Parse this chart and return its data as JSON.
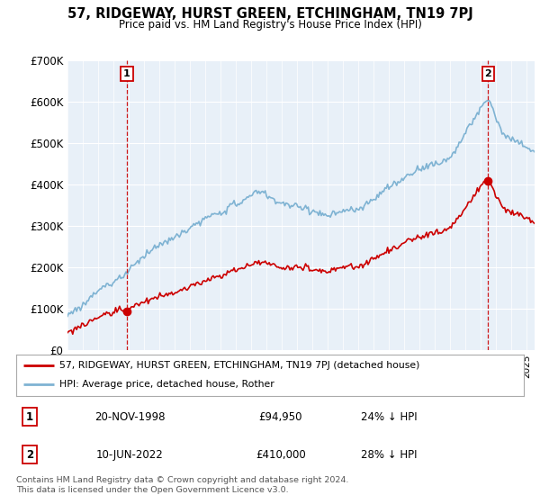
{
  "title": "57, RIDGEWAY, HURST GREEN, ETCHINGHAM, TN19 7PJ",
  "subtitle": "Price paid vs. HM Land Registry's House Price Index (HPI)",
  "sale1_date": "20-NOV-1998",
  "sale1_price": 94950,
  "sale1_label": "24% ↓ HPI",
  "sale2_date": "10-JUN-2022",
  "sale2_price": 410000,
  "sale2_label": "28% ↓ HPI",
  "legend_line1": "57, RIDGEWAY, HURST GREEN, ETCHINGHAM, TN19 7PJ (detached house)",
  "legend_line2": "HPI: Average price, detached house, Rother",
  "footer": "Contains HM Land Registry data © Crown copyright and database right 2024.\nThis data is licensed under the Open Government Licence v3.0.",
  "hpi_color": "#7fb3d3",
  "price_color": "#cc0000",
  "background_color": "#e8f0f8",
  "ylim": [
    0,
    700000
  ],
  "yticks": [
    0,
    100000,
    200000,
    300000,
    400000,
    500000,
    600000,
    700000
  ],
  "ytick_labels": [
    "£0",
    "£100K",
    "£200K",
    "£300K",
    "£400K",
    "£500K",
    "£600K",
    "£700K"
  ],
  "xmin": 1995.0,
  "xmax": 2025.5,
  "sale1_year": 1998.875,
  "sale2_year": 2022.458
}
